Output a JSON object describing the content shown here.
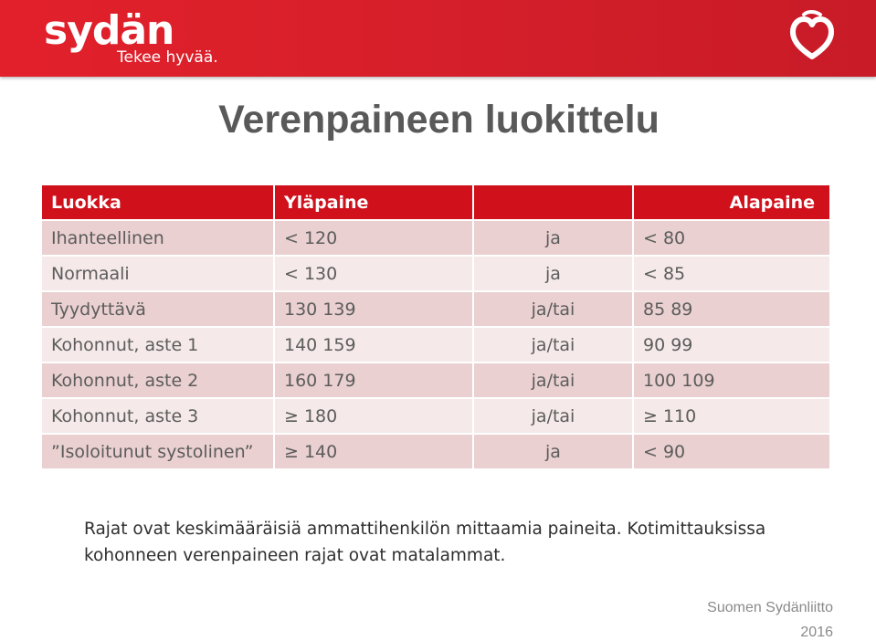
{
  "header": {
    "logo_text": "sydän",
    "slogan": "Tekee hyvää.",
    "brand_color": "#d41f2a",
    "logo_icon": "heart-icon"
  },
  "title": "Verenpaineen luokittelu",
  "table": {
    "headers": [
      "Luokka",
      "Yläpaine",
      "",
      "Alapaine"
    ],
    "rows": [
      [
        "Ihanteellinen",
        "< 120",
        "ja",
        "< 80"
      ],
      [
        "Normaali",
        "< 130",
        "ja",
        "< 85"
      ],
      [
        "Tyydyttävä",
        "130 139",
        "ja/tai",
        "85 89"
      ],
      [
        "Kohonnut, aste 1",
        "140 159",
        "ja/tai",
        "90 99"
      ],
      [
        "Kohonnut, aste 2",
        "160 179",
        "ja/tai",
        "100 109"
      ],
      [
        "Kohonnut, aste 3",
        "≥ 180",
        "ja/tai",
        "≥ 110"
      ],
      [
        "”Isoloitunut systolinen”",
        "≥ 140",
        "ja",
        "< 90"
      ]
    ]
  },
  "note": {
    "line1": "Rajat ovat keskimääräisiä ammattihenkilön mittaamia paineita. Kotimittauksissa",
    "line2": "kohonneen verenpaineen rajat ovat matalammat."
  },
  "footer": {
    "organization": "Suomen Sydänliitto",
    "year": "2016"
  }
}
